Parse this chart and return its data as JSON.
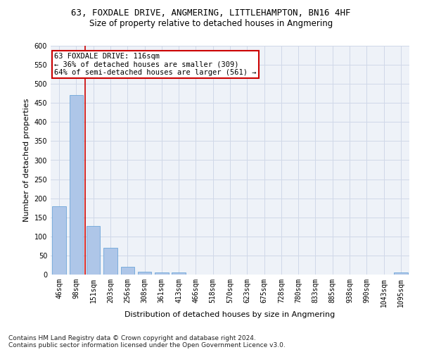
{
  "title": "63, FOXDALE DRIVE, ANGMERING, LITTLEHAMPTON, BN16 4HF",
  "subtitle": "Size of property relative to detached houses in Angmering",
  "xlabel": "Distribution of detached houses by size in Angmering",
  "ylabel": "Number of detached properties",
  "categories": [
    "46sqm",
    "98sqm",
    "151sqm",
    "203sqm",
    "256sqm",
    "308sqm",
    "361sqm",
    "413sqm",
    "466sqm",
    "518sqm",
    "570sqm",
    "623sqm",
    "675sqm",
    "728sqm",
    "780sqm",
    "833sqm",
    "885sqm",
    "938sqm",
    "990sqm",
    "1043sqm",
    "1095sqm"
  ],
  "values": [
    180,
    470,
    128,
    70,
    20,
    8,
    6,
    5,
    0,
    0,
    0,
    0,
    0,
    0,
    0,
    0,
    0,
    0,
    0,
    0,
    5
  ],
  "bar_color": "#aec6e8",
  "bar_edge_color": "#5b9bd5",
  "grid_color": "#d0d8e8",
  "background_color": "#eef2f8",
  "annotation_line1": "63 FOXDALE DRIVE: 116sqm",
  "annotation_line2": "← 36% of detached houses are smaller (309)",
  "annotation_line3": "64% of semi-detached houses are larger (561) →",
  "annotation_box_facecolor": "#ffffff",
  "annotation_box_edge_color": "#cc0000",
  "vline_color": "#cc0000",
  "ylim": [
    0,
    600
  ],
  "yticks": [
    0,
    50,
    100,
    150,
    200,
    250,
    300,
    350,
    400,
    450,
    500,
    550,
    600
  ],
  "footnote": "Contains HM Land Registry data © Crown copyright and database right 2024.\nContains public sector information licensed under the Open Government Licence v3.0.",
  "title_fontsize": 9,
  "subtitle_fontsize": 8.5,
  "xlabel_fontsize": 8,
  "ylabel_fontsize": 8,
  "tick_fontsize": 7,
  "annotation_fontsize": 7.5,
  "footnote_fontsize": 6.5
}
